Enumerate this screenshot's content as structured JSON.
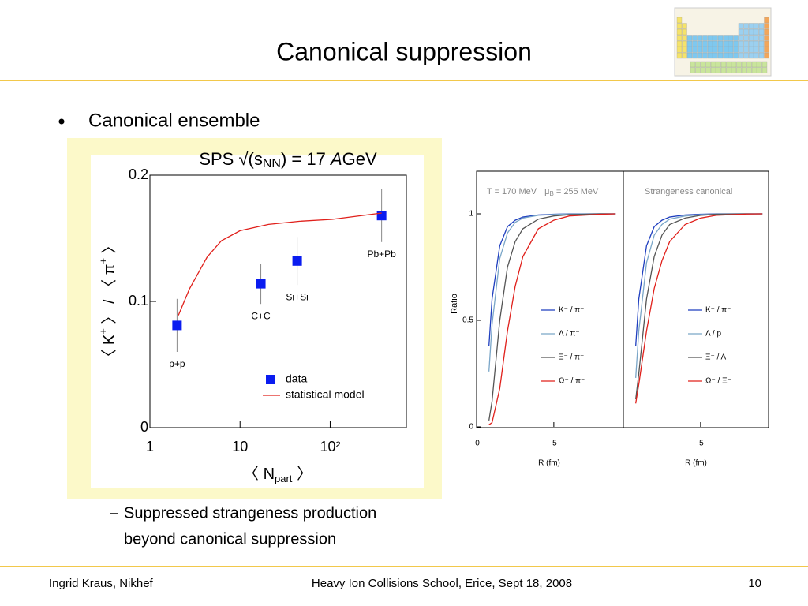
{
  "title": "Canonical suppression",
  "bullets": [
    "Canonical ensemble"
  ],
  "sub_bullets": [
    {
      "lines": [
        "Suppressed strangeness production",
        "beyond canonical suppression"
      ]
    }
  ],
  "footer": {
    "left": "Ingrid Kraus, Nikhef",
    "center": "Heavy Ion Collisions School, Erice, Sept 18, 2008",
    "page": "10"
  },
  "chart_data": [
    {
      "type": "scatter",
      "title": [
        "SPS √(s",
        "NN",
        ") = 17 ",
        "A",
        "GeV"
      ],
      "ylabel": [
        "〈 K",
        "+",
        " 〉 / 〈 π",
        "+",
        " 〉"
      ],
      "xlabel": [
        "〈 N",
        "part",
        " 〉"
      ],
      "log_x": true,
      "xlim": [
        1,
        700
      ],
      "xticks": [
        1,
        10,
        {
          "value": 100,
          "label": "10²"
        }
      ],
      "ylim": [
        0,
        0.2
      ],
      "yticks": [
        0,
        0.1,
        0.2
      ],
      "legend": "lower right",
      "series": [
        {
          "name": "data",
          "type": "scatter",
          "color": "#0a1cf0",
          "x": [
            2,
            17,
            43,
            372
          ],
          "values": [
            0.081,
            0.114,
            0.132,
            0.168
          ],
          "errors": [
            0.021,
            0.016,
            0.019,
            0.021
          ],
          "point_labels": [
            "p+p",
            "C+C",
            "Si+Si",
            "Pb+Pb"
          ]
        },
        {
          "name": "statistical model",
          "type": "line",
          "color": "#e0201b",
          "x": [
            2.07,
            2.75,
            4.3,
            6.2,
            10,
            20.7,
            46,
            105,
            372
          ],
          "values": [
            0.089,
            0.11,
            0.135,
            0.148,
            0.156,
            0.161,
            0.1635,
            0.165,
            0.17
          ]
        }
      ]
    },
    {
      "type": "line",
      "annotation": [
        "T = 170 MeV",
        "μ",
        "B",
        " = 255 MeV"
      ],
      "ylabel": "Ratio",
      "xlabel": "R (fm)",
      "xlim": [
        0,
        9.4
      ],
      "xticks": [
        0,
        5
      ],
      "ylim": [
        0,
        1.2
      ],
      "yticks": [
        0,
        0.5,
        1
      ],
      "legend": "center right",
      "x": [
        0.8,
        1,
        1.5,
        2,
        2.5,
        3,
        4,
        5,
        6,
        8,
        9
      ],
      "series": [
        {
          "name": "K⁻ / π⁻",
          "color": "#1f3fbf",
          "values": [
            0.38,
            0.6,
            0.85,
            0.94,
            0.97,
            0.985,
            0.995,
            0.998,
            1,
            1,
            1
          ]
        },
        {
          "name": "Λ / π⁻",
          "color": "#7aa6c8",
          "values": [
            0.26,
            0.48,
            0.79,
            0.91,
            0.96,
            0.98,
            0.993,
            0.997,
            0.999,
            1,
            1
          ]
        },
        {
          "name": "Ξ⁻ / π⁻",
          "color": "#555555",
          "values": [
            0.03,
            0.12,
            0.5,
            0.75,
            0.87,
            0.93,
            0.975,
            0.99,
            0.996,
            1,
            1
          ]
        },
        {
          "name": "Ω⁻ / π⁻",
          "color": "#e0201b",
          "values": [
            0.01,
            0.02,
            0.18,
            0.45,
            0.66,
            0.8,
            0.93,
            0.97,
            0.99,
            0.998,
            1
          ]
        }
      ]
    },
    {
      "type": "line",
      "annotation": [
        "Strangeness canonical"
      ],
      "xlabel": "R (fm)",
      "xlim": [
        0,
        9.4
      ],
      "xticks": [
        5
      ],
      "ylim": [
        0,
        1.2
      ],
      "legend": "center right",
      "x": [
        0.8,
        1,
        1.5,
        2,
        2.5,
        3,
        4,
        5,
        6,
        8,
        9
      ],
      "series": [
        {
          "name": "K⁻ / π⁻",
          "color": "#1f3fbf",
          "values": [
            0.38,
            0.6,
            0.85,
            0.94,
            0.97,
            0.985,
            0.995,
            0.998,
            1,
            1,
            1
          ]
        },
        {
          "name": "Λ / p",
          "color": "#7aa6c8",
          "values": [
            0.23,
            0.45,
            0.77,
            0.9,
            0.95,
            0.975,
            0.99,
            0.996,
            0.999,
            1,
            1
          ]
        },
        {
          "name": "Ξ⁻ / Λ",
          "color": "#555555",
          "values": [
            0.13,
            0.25,
            0.6,
            0.8,
            0.9,
            0.95,
            0.98,
            0.993,
            0.998,
            1,
            1
          ]
        },
        {
          "name": "Ω⁻ / Ξ⁻",
          "color": "#e0201b",
          "values": [
            0.11,
            0.2,
            0.45,
            0.65,
            0.78,
            0.87,
            0.95,
            0.98,
            0.993,
            0.999,
            1
          ]
        }
      ]
    }
  ]
}
